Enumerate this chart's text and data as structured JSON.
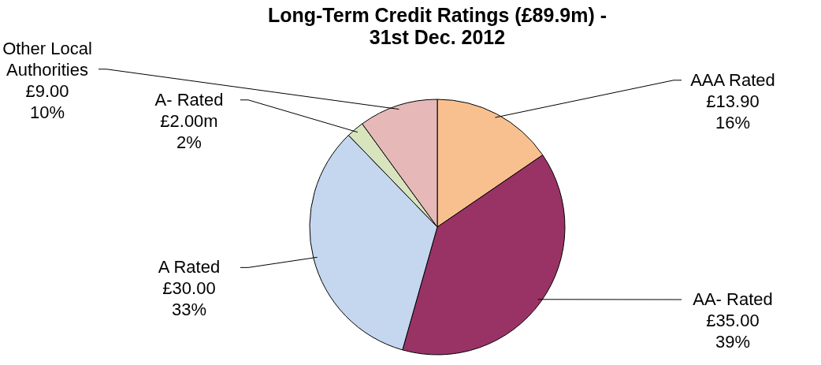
{
  "chart_data": {
    "type": "pie",
    "title": "Long-Term Credit Ratings (£89.9m) - 31st Dec. 2012",
    "categories": [
      "AAA Rated",
      "AA- Rated",
      "A Rated",
      "A- Rated",
      "Other Local Authorities"
    ],
    "values": [
      13.9,
      35,
      30,
      2,
      9
    ],
    "colors": [
      "#f9c08f",
      "#993366",
      "#c5d6ef",
      "#d7e4bd",
      "#e6b9b8"
    ],
    "value_labels": [
      "£13.90\n16%",
      "£35.00\n39%",
      "£30.00\n33%",
      "£2.00m\n2%",
      "£9.00\n10%"
    ]
  }
}
